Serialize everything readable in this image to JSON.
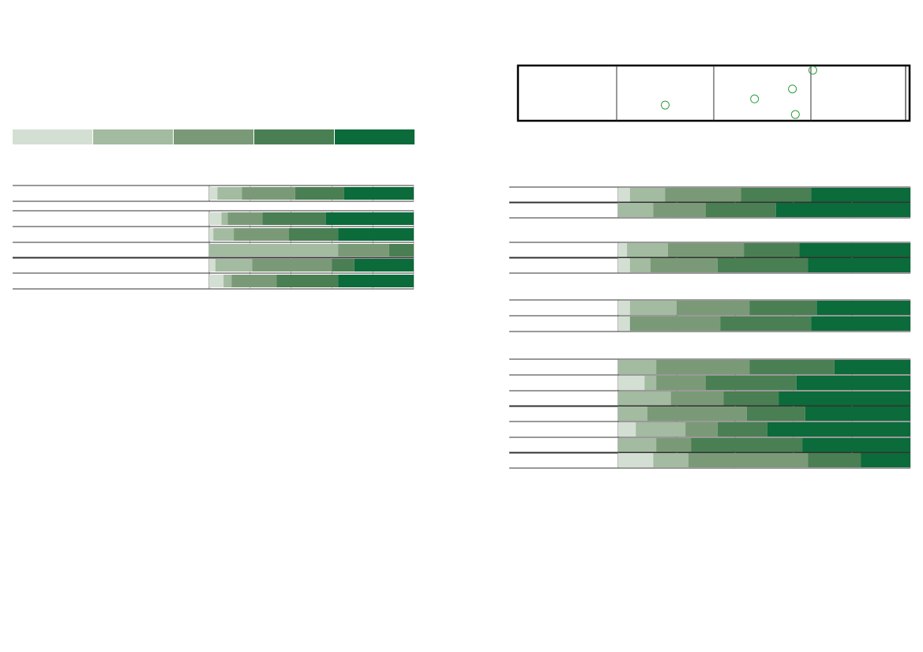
{
  "chart_data": [
    {
      "type": "stacked-bar",
      "orientation": "horizontal",
      "categories": [
        null,
        null,
        null,
        null,
        null,
        null
      ],
      "xlim": [
        0,
        100
      ],
      "xticks": [
        0,
        20,
        40,
        60,
        80,
        100
      ],
      "grid": true,
      "series": [
        {
          "color": "#d4dfd3",
          "values": [
            4,
            6,
            2,
            0,
            3,
            7
          ]
        },
        {
          "color": "#a3bba0",
          "values": [
            12,
            3,
            10,
            63,
            18,
            4
          ]
        },
        {
          "color": "#7a9a77",
          "values": [
            26,
            17,
            27,
            25,
            39,
            22
          ]
        },
        {
          "color": "#4a7f53",
          "values": [
            24,
            31,
            24,
            12,
            11,
            30
          ]
        },
        {
          "color": "#0b6b3a",
          "values": [
            34,
            43,
            37,
            0,
            29,
            37
          ]
        }
      ]
    },
    {
      "type": "stacked-bar",
      "orientation": "horizontal",
      "categories": [
        null,
        null,
        null,
        null,
        null,
        null,
        null,
        null,
        null,
        null,
        null,
        null,
        null
      ],
      "xlim": [
        0,
        100
      ],
      "xticks": [
        0,
        20,
        40,
        60,
        80,
        100
      ],
      "grid": true,
      "series": [
        {
          "color": "#d4dfd3",
          "values": [
            4,
            0,
            3,
            4,
            4,
            4,
            0,
            9,
            0,
            0,
            6,
            0,
            12
          ]
        },
        {
          "color": "#a3bba0",
          "values": [
            12,
            12,
            14,
            7,
            16,
            0,
            13,
            4,
            18,
            10,
            17,
            13,
            12
          ]
        },
        {
          "color": "#7a9a77",
          "values": [
            26,
            18,
            26,
            23,
            25,
            31,
            32,
            17,
            18,
            34,
            11,
            12,
            41
          ]
        },
        {
          "color": "#4a7f53",
          "values": [
            24,
            24,
            19,
            31,
            23,
            31,
            29,
            31,
            19,
            20,
            17,
            38,
            18
          ]
        },
        {
          "color": "#0b6b3a",
          "values": [
            34,
            46,
            38,
            35,
            32,
            34,
            26,
            39,
            45,
            36,
            49,
            37,
            17
          ]
        }
      ]
    },
    {
      "type": "scatter",
      "color": "#2e9e3e",
      "x": [
        1.5,
        2.42,
        2.81,
        2.84,
        3.02
      ],
      "y": [
        27,
        39,
        58,
        9,
        94
      ],
      "xlim": [
        0,
        4
      ],
      "xticks": [
        1,
        2,
        3
      ],
      "ylim": [
        0,
        100
      ]
    }
  ]
}
